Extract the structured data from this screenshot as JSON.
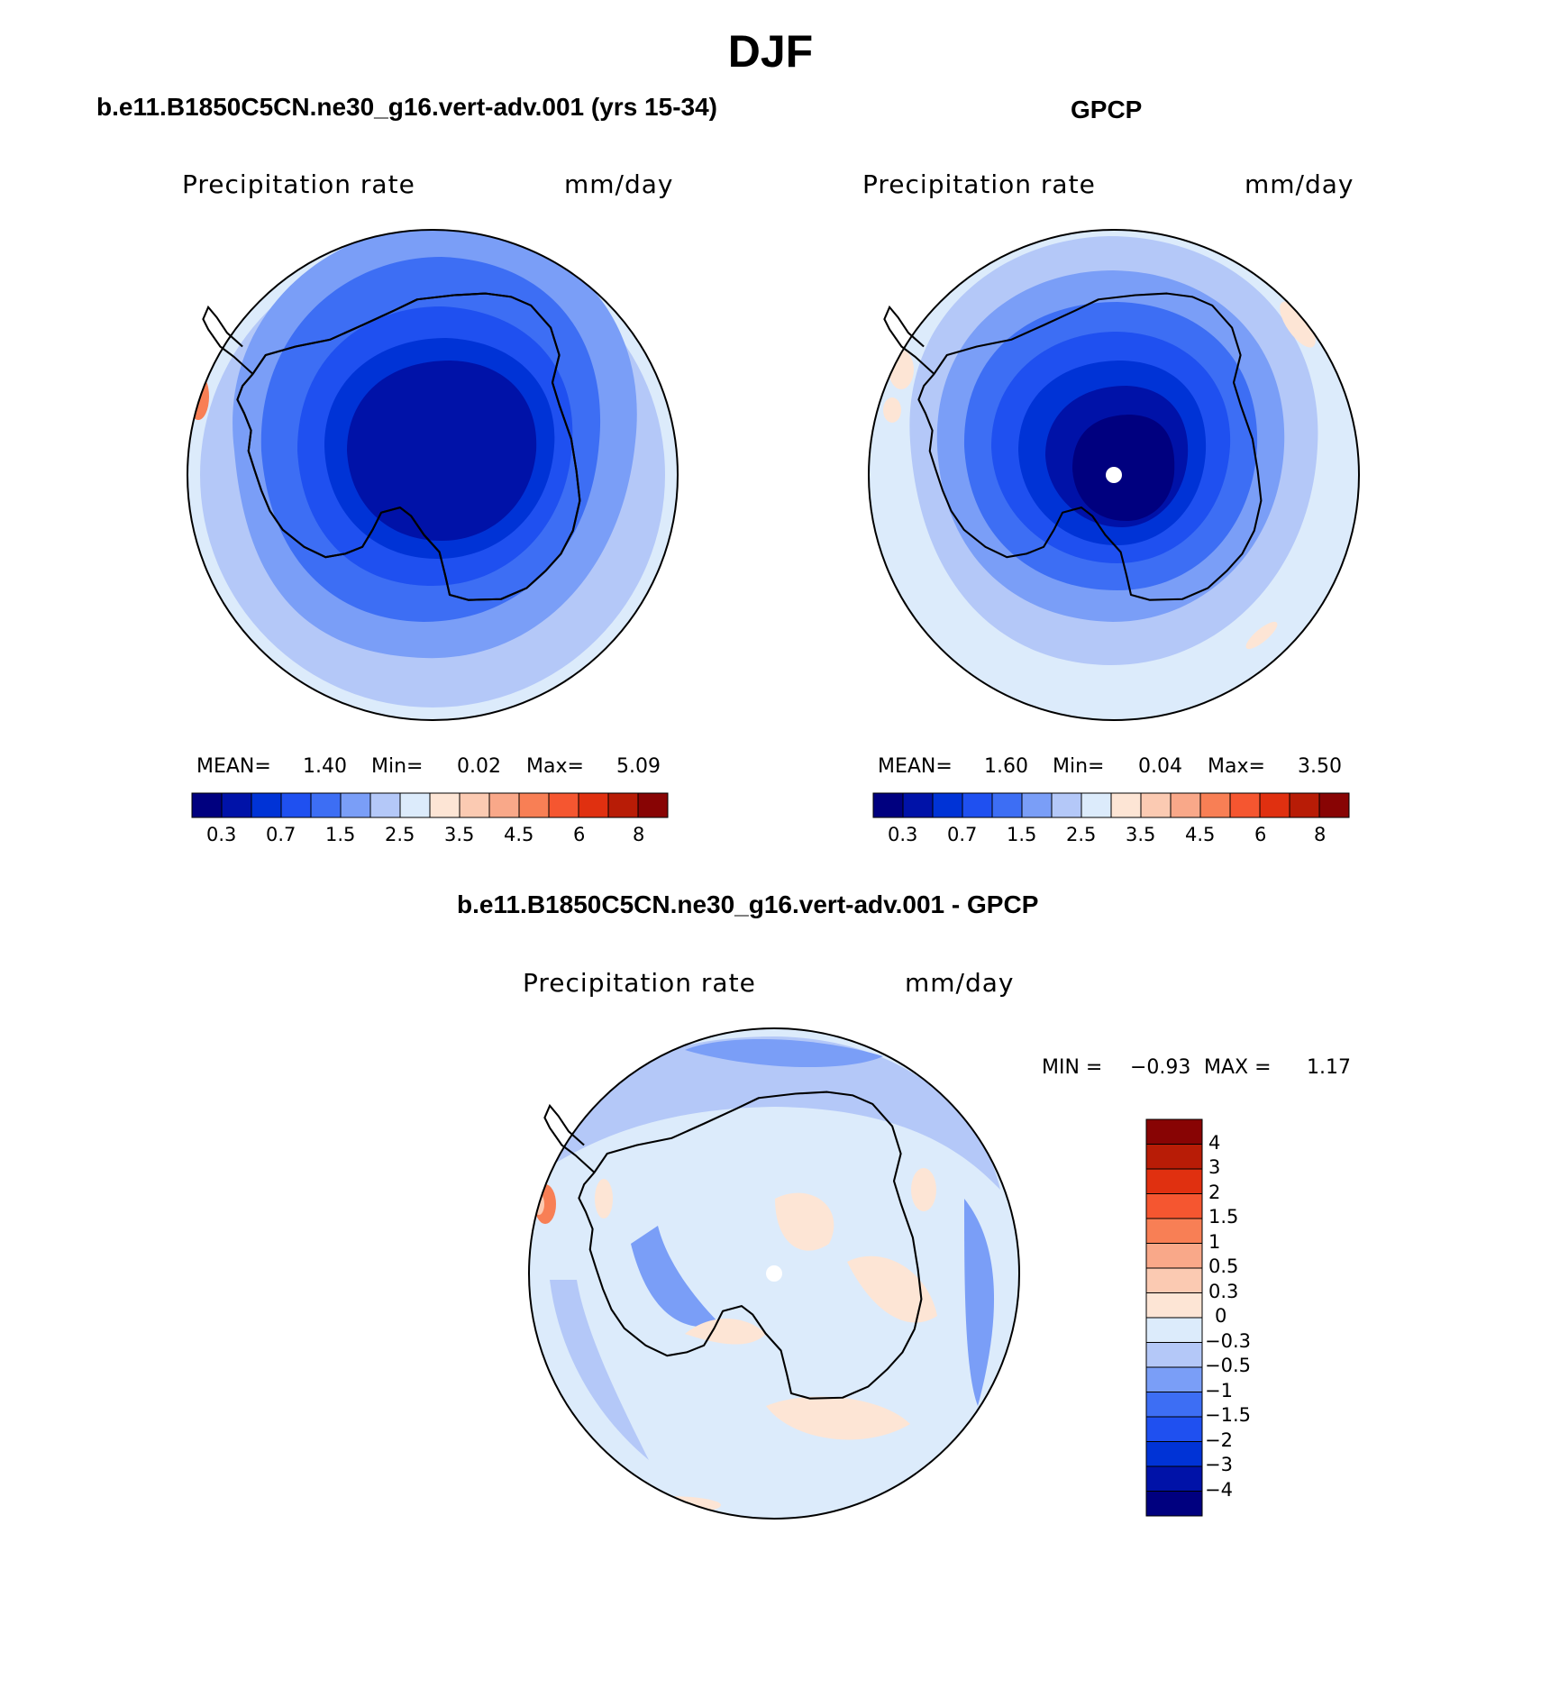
{
  "figure": {
    "season": "DJF",
    "colors": {
      "scale": [
        "#00007f",
        "#0012a8",
        "#0033d6",
        "#1f50f0",
        "#3d6ef4",
        "#7a9ef7",
        "#b4c8f8",
        "#dcebfb",
        "#fde5d5",
        "#fbcab2",
        "#f9a889",
        "#f87f55",
        "#f55630",
        "#e03010",
        "#b81c06",
        "#880404"
      ],
      "coastline": "#000000",
      "background": "#ffffff"
    }
  },
  "panels": {
    "model": {
      "title": "b.e11.B1850C5CN.ne30_g16.vert-adv.001 (yrs 15-34)",
      "variable": "Precipitation rate",
      "units": "mm/day",
      "mean_label": "MEAN=",
      "mean_value": "1.40",
      "min_label": "Min=",
      "min_value": "0.02",
      "max_label": "Max=",
      "max_value": "5.09"
    },
    "obs": {
      "title": "GPCP",
      "variable": "Precipitation rate",
      "units": "mm/day",
      "mean_label": "MEAN=",
      "mean_value": "1.60",
      "min_label": "Min=",
      "min_value": "0.04",
      "max_label": "Max=",
      "max_value": "3.50"
    },
    "diff": {
      "title": "b.e11.B1850C5CN.ne30_g16.vert-adv.001 - GPCP",
      "variable": "Precipitation rate",
      "units": "mm/day",
      "min_label": "MIN =",
      "min_value": "−0.93",
      "max_label": "MAX =",
      "max_value": "1.17"
    }
  },
  "colorbar_horizontal": {
    "tick_labels": [
      "0.3",
      "0.7",
      "1.5",
      "2.5",
      "3.5",
      "4.5",
      "6",
      "8"
    ]
  },
  "colorbar_vertical": {
    "tick_labels": [
      "4",
      "3",
      "2",
      "1.5",
      "1",
      "0.5",
      "0.3",
      "0",
      "−0.3",
      "−0.5",
      "−1",
      "−1.5",
      "−2",
      "−3",
      "−4"
    ]
  }
}
